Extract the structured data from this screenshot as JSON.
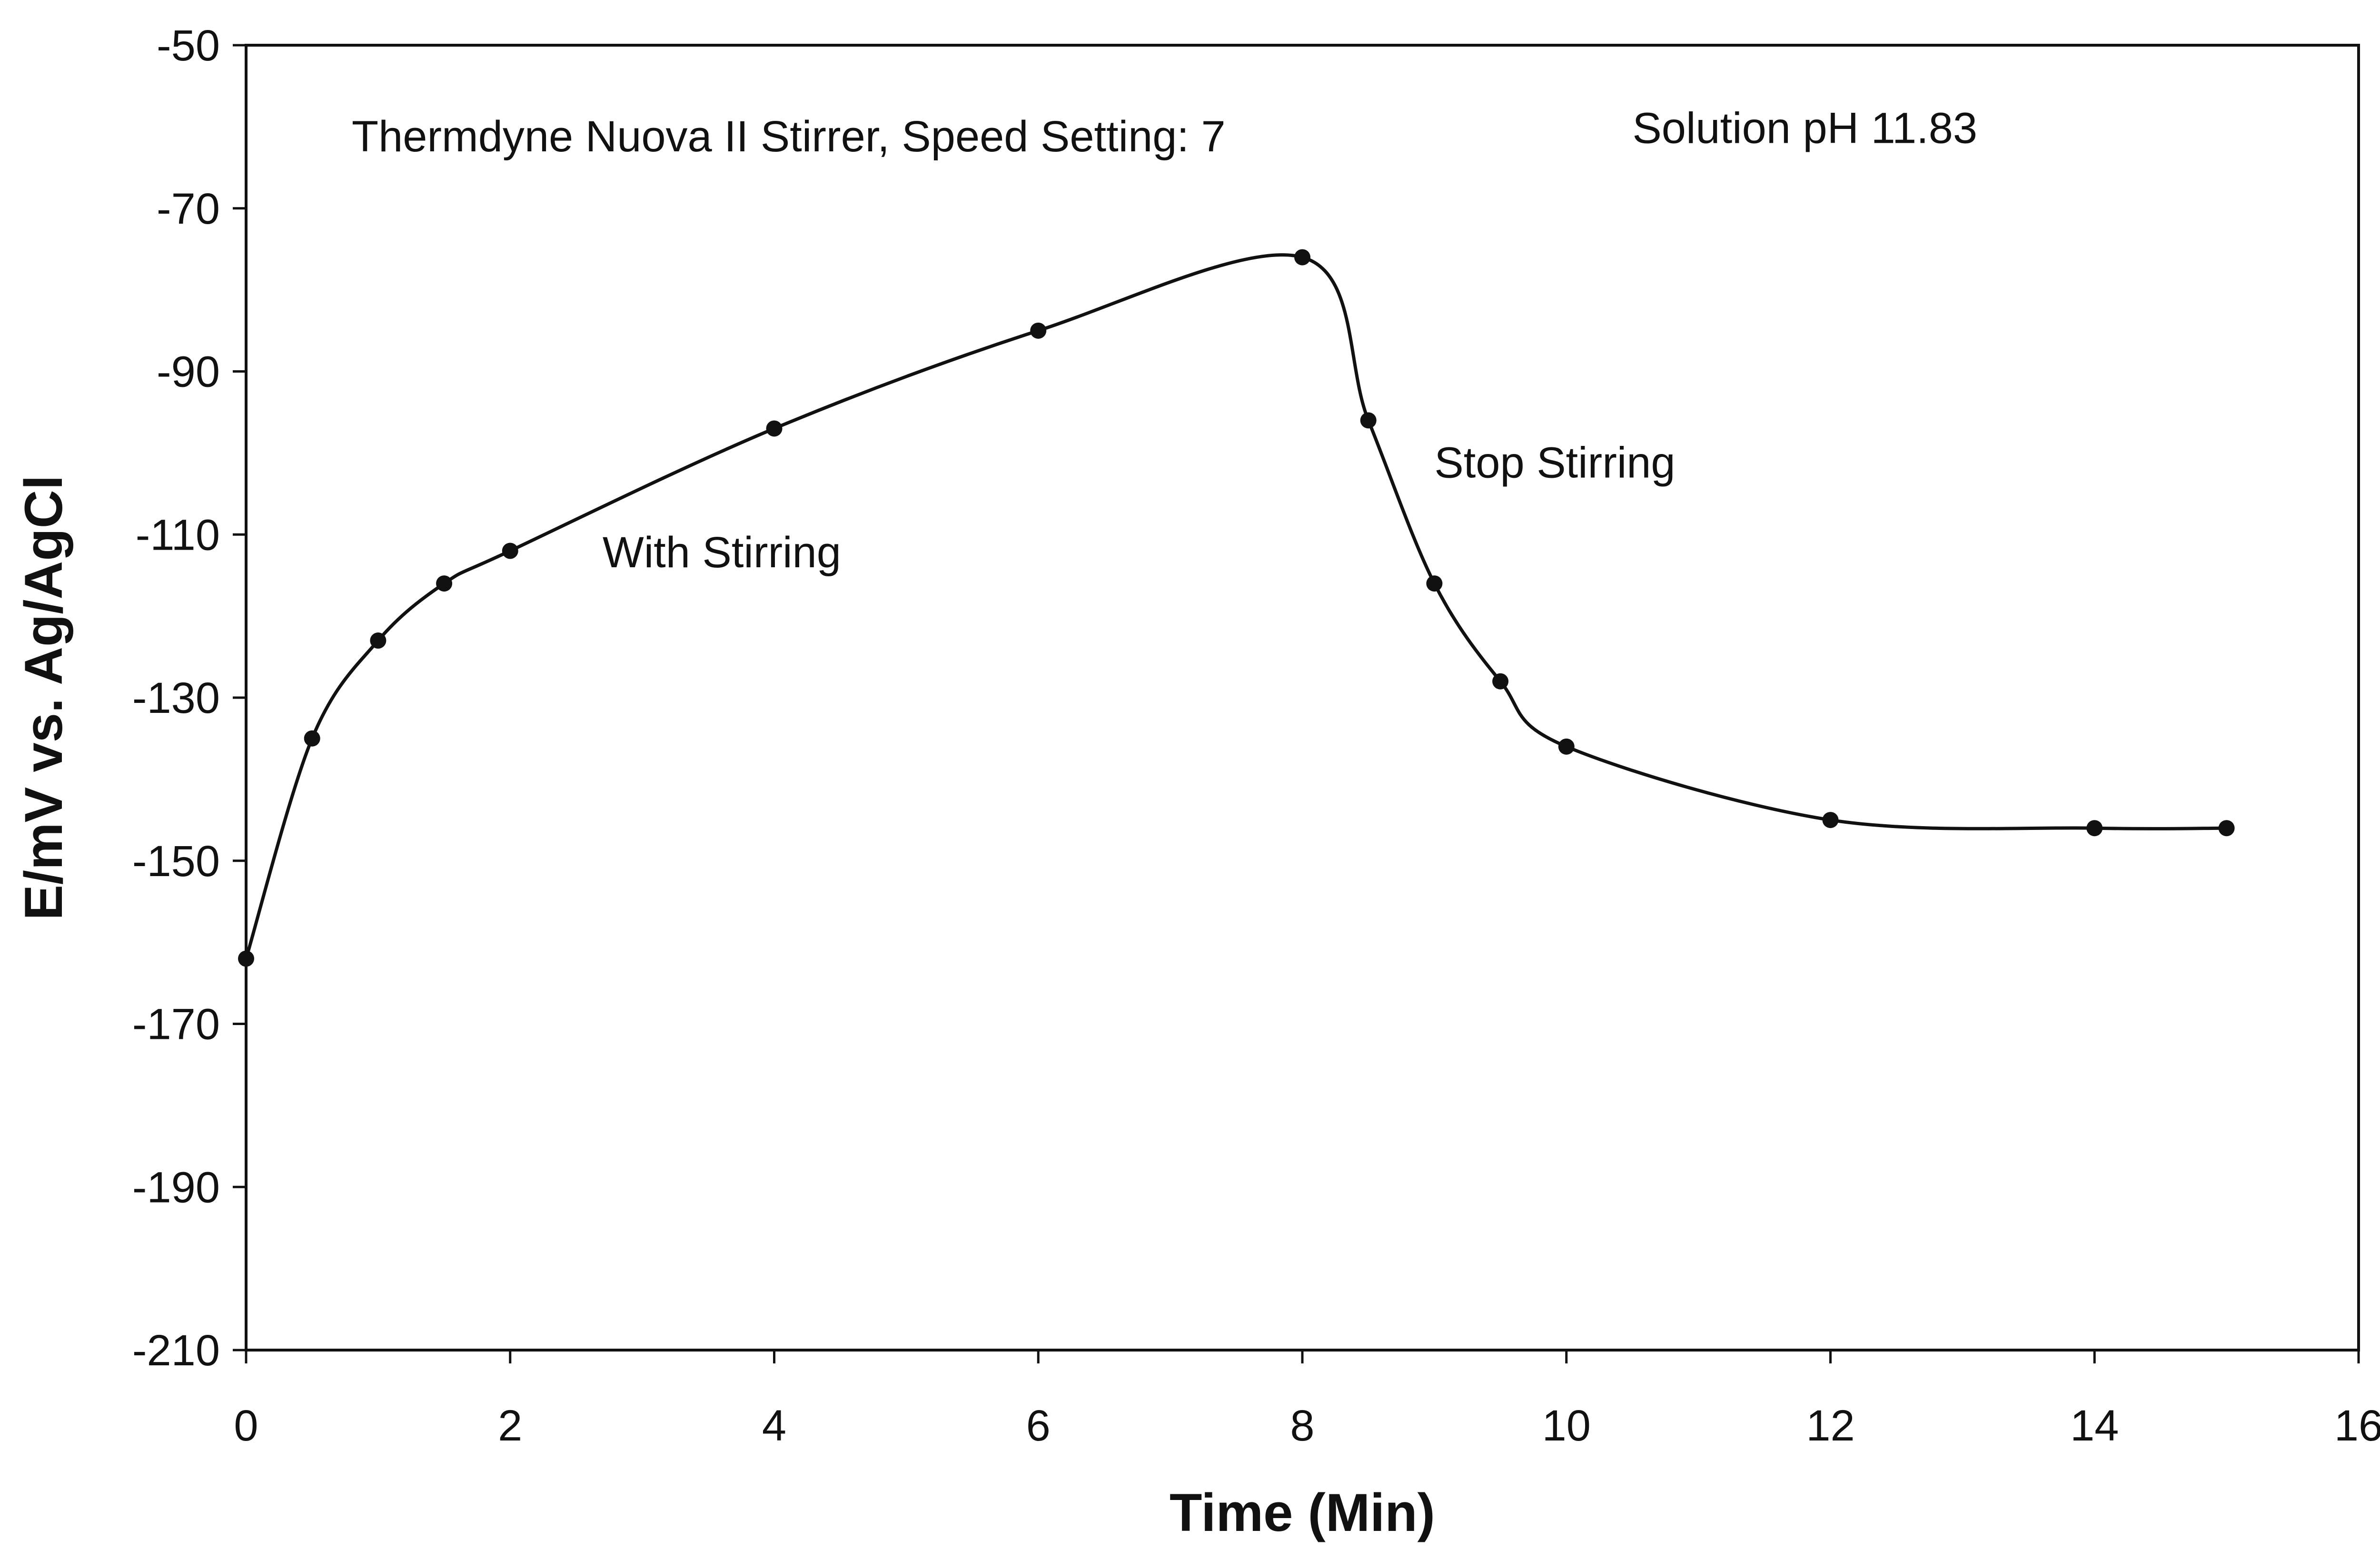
{
  "chart_data": {
    "type": "line",
    "title": "",
    "xlabel": "Time (Min)",
    "ylabel": "E/mV vs. Ag/AgCl",
    "xlim": [
      0,
      16
    ],
    "ylim": [
      -210,
      -50
    ],
    "xticks": [
      0,
      2,
      4,
      6,
      8,
      10,
      12,
      14,
      16
    ],
    "xtick_labels": [
      "0",
      "2",
      "4",
      "6",
      "8",
      "10",
      "12",
      "14",
      "16"
    ],
    "yticks": [
      -50,
      -70,
      -90,
      -110,
      -130,
      -150,
      -170,
      -190,
      -210
    ],
    "ytick_labels": [
      "-50",
      "-70",
      "-90",
      "-110",
      "-130",
      "-150",
      "-170",
      "-190",
      "-210"
    ],
    "grid": false,
    "legend": false,
    "series": [
      {
        "x": [
          0,
          0.5,
          1,
          1.5,
          2,
          4,
          6,
          8,
          8.5,
          9,
          9.5,
          10,
          12,
          14,
          15
        ],
        "y": [
          -162,
          -135,
          -123,
          -116,
          -112,
          -97,
          -85,
          -76,
          -96,
          -116,
          -128,
          -136,
          -145,
          -146,
          -146
        ]
      }
    ],
    "annotations": [
      {
        "text": "Thermdyne Nuova II Stirrer, Speed Setting: 7",
        "x": 0.8,
        "y": -63
      },
      {
        "text": "Solution pH 11.83",
        "x": 10.5,
        "y": -62
      },
      {
        "text": "With Stirring",
        "x": 2.7,
        "y": -114
      },
      {
        "text": "Stop Stirring",
        "x": 9.0,
        "y": -103
      }
    ]
  }
}
